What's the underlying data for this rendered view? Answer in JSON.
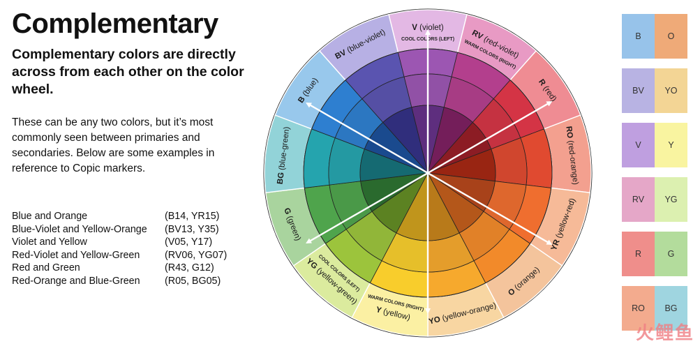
{
  "title": "Complementary",
  "subtitle": "Complementary colors are directly across from each other on the color wheel.",
  "body": "These can be any two colors, but it’s most commonly seen between primaries and secondaries. Below are some examples in reference to Copic markers.",
  "examples": [
    {
      "name": "Blue and Orange",
      "codes": "(B14, YR15)"
    },
    {
      "name": "Blue-Violet and Yellow-Orange",
      "codes": "(BV13, Y35)"
    },
    {
      "name": "Violet and Yellow",
      "codes": "(V05, Y17)"
    },
    {
      "name": "Red-Violet and Yellow-Green",
      "codes": "(RV06, YG07)"
    },
    {
      "name": "Red and Green",
      "codes": "(R43, G12)"
    },
    {
      "name": "Red-Orange and Blue-Green",
      "codes": "(R05, BG05)"
    }
  ],
  "wheel": {
    "segments": [
      {
        "code": "V",
        "name": "(violet)",
        "outer": "#e3b8e4",
        "mid": "#9c56b2",
        "inner": "#5e2e7e"
      },
      {
        "code": "RV",
        "name": "(red-violet)",
        "outer": "#e89ac4",
        "mid": "#b33f8d",
        "inner": "#741e5a"
      },
      {
        "code": "R",
        "name": "(red)",
        "outer": "#ef8c93",
        "mid": "#d43445",
        "inner": "#8c1c24"
      },
      {
        "code": "RO",
        "name": "(red-orange)",
        "outer": "#f3a08f",
        "mid": "#e04a30",
        "inner": "#992512"
      },
      {
        "code": "YR",
        "name": "(yellow-red)",
        "outer": "#f6ba98",
        "mid": "#ef6e2f",
        "inner": "#a8421a"
      },
      {
        "code": "O",
        "name": "(orange)",
        "outer": "#f4c49c",
        "mid": "#f28a2a",
        "inner": "#b4571a"
      },
      {
        "code": "YO",
        "name": "(yellow-orange)",
        "outer": "#f8d6a2",
        "mid": "#f6a92d",
        "inner": "#b87a1a"
      },
      {
        "code": "Y",
        "name": "(yellow)",
        "outer": "#fbf0a3",
        "mid": "#f8cd2c",
        "inner": "#c0951c"
      },
      {
        "code": "YG",
        "name": "(yellow-green)",
        "outer": "#dbeb9e",
        "mid": "#9cc43c",
        "inner": "#5c8222"
      },
      {
        "code": "G",
        "name": "(green)",
        "outer": "#a9d49e",
        "mid": "#4fa44c",
        "inner": "#2a6a2e"
      },
      {
        "code": "BG",
        "name": "(blue-green)",
        "outer": "#92d3d8",
        "mid": "#25a4ae",
        "inner": "#156a72"
      },
      {
        "code": "B",
        "name": "(blue)",
        "outer": "#98c8ec",
        "mid": "#2e7fd0",
        "inner": "#1a4a8e"
      },
      {
        "code": "BV",
        "name": "(blue-violet)",
        "outer": "#b7b0e4",
        "mid": "#5a54b0",
        "inner": "#302e7c"
      }
    ],
    "cool_label": "COOL COLORS (LEFT)",
    "warm_label": "WARM COLORS (RIGHT)"
  },
  "pairs": [
    {
      "left": "B",
      "right": "O",
      "left_color": "#97c3ea",
      "right_color": "#efaa78"
    },
    {
      "left": "BV",
      "right": "YO",
      "left_color": "#b8b3e3",
      "right_color": "#f3d595"
    },
    {
      "left": "V",
      "right": "Y",
      "left_color": "#bf9fe0",
      "right_color": "#f9f4a0"
    },
    {
      "left": "RV",
      "right": "YG",
      "left_color": "#e5a7c8",
      "right_color": "#dcf0b0"
    },
    {
      "left": "R",
      "right": "G",
      "left_color": "#ef8e8b",
      "right_color": "#b3dc9c"
    },
    {
      "left": "RO",
      "right": "BG",
      "left_color": "#f3ab8e",
      "right_color": "#9fd5e0"
    }
  ],
  "watermark": "火鲤鱼"
}
